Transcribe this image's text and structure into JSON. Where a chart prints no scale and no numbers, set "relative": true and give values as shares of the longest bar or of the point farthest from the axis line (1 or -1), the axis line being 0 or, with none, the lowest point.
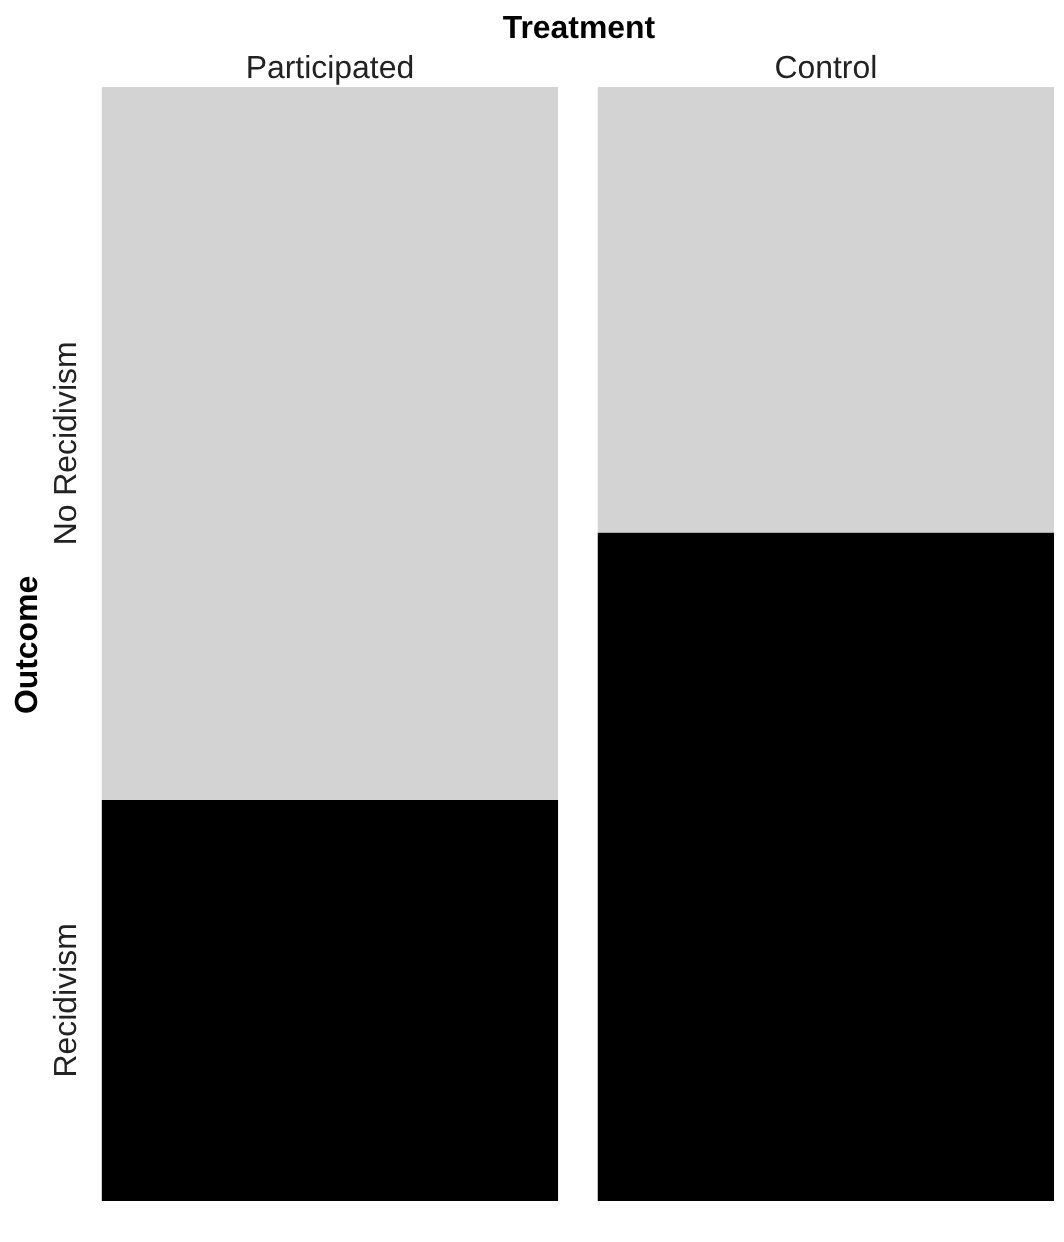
{
  "chart_data": {
    "type": "bar",
    "stacked": true,
    "relative": true,
    "xlabel": "Treatment",
    "ylabel": "Outcome",
    "categories": [
      "Participated",
      "Control"
    ],
    "series": [
      {
        "name": "Recidivism",
        "color": "#000000",
        "values": [
          0.36,
          0.6
        ]
      },
      {
        "name": "No Recidivism",
        "color": "#d3d3d3",
        "values": [
          0.64,
          0.4
        ]
      }
    ],
    "grid": false
  }
}
